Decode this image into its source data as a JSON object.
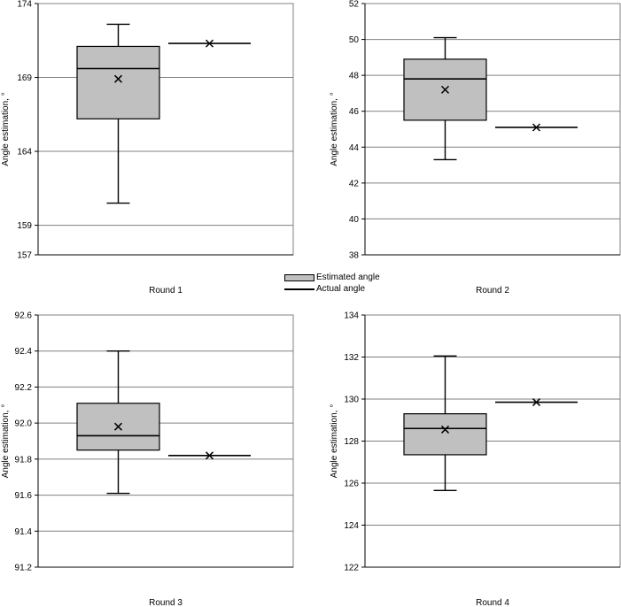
{
  "legend": {
    "items": [
      {
        "label": "Estimated angle",
        "symbol": "box",
        "color": "#c0c0c0"
      },
      {
        "label": "Actual angle",
        "symbol": "line",
        "color": "#000000"
      }
    ]
  },
  "chart_data": [
    {
      "type": "box",
      "xlabel": "Round 1",
      "ylabel": "Angle estimation, °",
      "ylim": [
        157,
        174
      ],
      "yticks": [
        157,
        159,
        164,
        169,
        174
      ],
      "grid": true,
      "estimated": {
        "min": 160.5,
        "q1": 166.2,
        "median": 169.6,
        "q3": 171.1,
        "max": 172.6,
        "mean": 168.9
      },
      "actual": 171.3
    },
    {
      "type": "box",
      "xlabel": "Round 2",
      "ylabel": "Angle estimation, °",
      "ylim": [
        38,
        52
      ],
      "yticks": [
        38,
        40,
        42,
        44,
        46,
        48,
        50,
        52
      ],
      "grid": true,
      "estimated": {
        "min": 43.3,
        "q1": 45.5,
        "median": 47.8,
        "q3": 48.9,
        "max": 50.1,
        "mean": 47.2
      },
      "actual": 45.1
    },
    {
      "type": "box",
      "xlabel": "Round 3",
      "ylabel": "Angle estimation, °",
      "ylim": [
        91.2,
        92.6
      ],
      "yticks": [
        91.2,
        91.4,
        91.6,
        91.8,
        92.0,
        92.2,
        92.4,
        92.6
      ],
      "grid": true,
      "estimated": {
        "min": 91.61,
        "q1": 91.85,
        "median": 91.93,
        "q3": 92.11,
        "max": 92.4,
        "mean": 91.98
      },
      "actual": 91.82
    },
    {
      "type": "box",
      "xlabel": "Round 4",
      "ylabel": "Angle estimation, °",
      "ylim": [
        122,
        134
      ],
      "yticks": [
        122,
        124,
        126,
        128,
        130,
        132,
        134
      ],
      "grid": true,
      "estimated": {
        "min": 125.65,
        "q1": 127.35,
        "median": 128.6,
        "q3": 129.3,
        "max": 132.05,
        "mean": 128.55
      },
      "actual": 129.85
    }
  ]
}
